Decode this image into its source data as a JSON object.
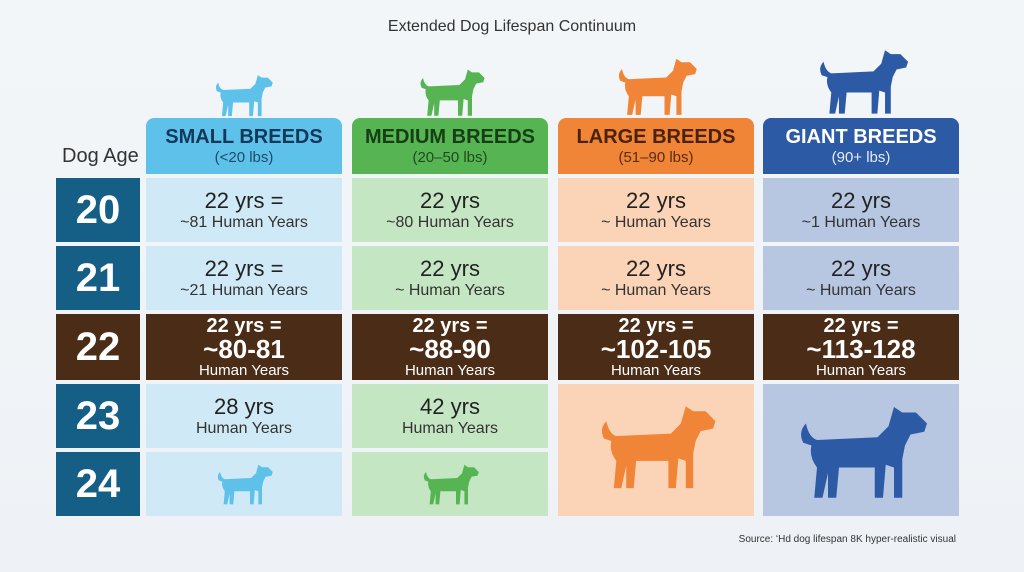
{
  "colors": {
    "small": "#5dc1ea",
    "small_bg": "#cfe9f6",
    "medium": "#56b552",
    "medium_bg": "#c5e6c3",
    "large": "#f08537",
    "large_bg": "#fbd3b6",
    "giant": "#2d5aa5",
    "giant_bg": "#b7c7e2",
    "age": "#155f86",
    "highlight": "#4a2c17"
  },
  "icons": [
    "dog-silhouette-icon"
  ],
  "chart_data": {
    "type": "table",
    "title": "Extended Dog Lifespan Continuum",
    "row_header": "Dog Age",
    "ages": [
      "20",
      "21",
      "22",
      "23",
      "24"
    ],
    "highlight_age": "22",
    "breeds": [
      {
        "name": "SMALL BREEDS",
        "range": "(<20 lbs)"
      },
      {
        "name": "MEDIUM BREEDS",
        "range": "(20–50 lbs)"
      },
      {
        "name": "LARGE BREEDS",
        "range": "(51–90 lbs)"
      },
      {
        "name": "GIANT BREEDS",
        "range": "(90+ lbs)"
      }
    ],
    "cells": [
      [
        {
          "l1": "22 yrs =",
          "l2": "~81 Human Years"
        },
        {
          "l1": "22 yrs =",
          "l2": "~21 Human Years"
        },
        {
          "l1": "22 yrs =",
          "big": "~80-81",
          "l2": "Human Years"
        },
        {
          "l1": "28 yrs",
          "l2": "Human Years"
        },
        {
          "dog": true
        }
      ],
      [
        {
          "l1": "22 yrs",
          "l2": "~80 Human Years"
        },
        {
          "l1": "22 yrs",
          "l2": "~ Human Years"
        },
        {
          "l1": "22 yrs =",
          "big": "~88-90",
          "l2": "Human Years"
        },
        {
          "l1": "42 yrs",
          "l2": "Human Years"
        },
        {
          "dog": true
        }
      ],
      [
        {
          "l1": "22 yrs",
          "l2": "~ Human Years"
        },
        {
          "l1": "22 yrs",
          "l2": "~ Human Years"
        },
        {
          "l1": "22 yrs =",
          "big": "~102-105",
          "l2": "Human Years"
        },
        {
          "dog": true,
          "merged": true
        }
      ],
      [
        {
          "l1": "22 yrs",
          "l2": "~1 Human Years"
        },
        {
          "l1": "22 yrs",
          "l2": "~ Human Years"
        },
        {
          "l1": "22 yrs =",
          "big": "~113-128",
          "l2": "Human Years"
        },
        {
          "dog": true,
          "merged": true
        }
      ]
    ]
  },
  "source": "Source: ʻHd dog  lifespan 8K hyper-realistic visual"
}
